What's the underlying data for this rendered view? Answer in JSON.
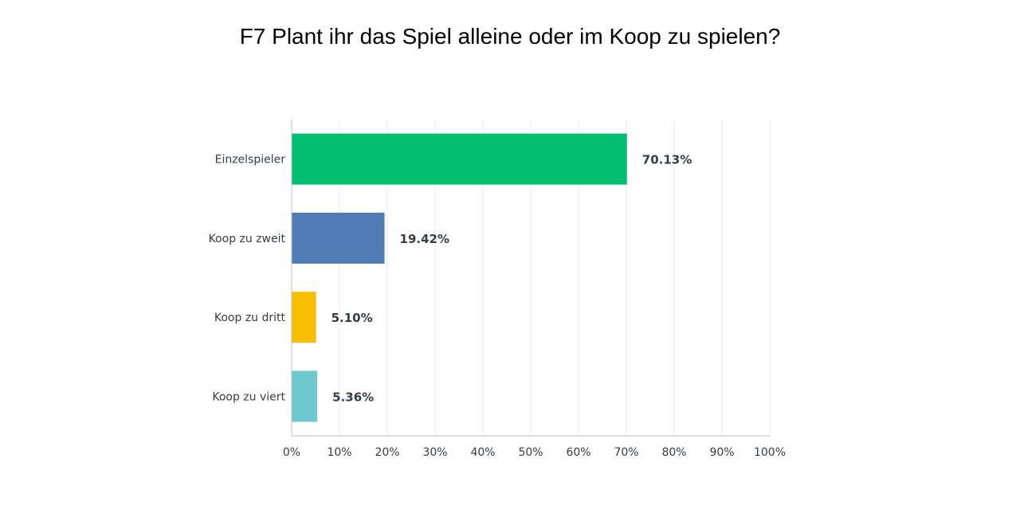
{
  "chart_data": {
    "type": "bar",
    "orientation": "horizontal",
    "title": "F7 Plant ihr das Spiel alleine oder im Koop zu spielen?",
    "categories": [
      "Einzelspieler",
      "Koop zu zweit",
      "Koop zu dritt",
      "Koop zu viert"
    ],
    "values": [
      70.13,
      19.42,
      5.1,
      5.36
    ],
    "value_labels": [
      "70.13%",
      "19.42%",
      "5.10%",
      "5.36%"
    ],
    "colors": [
      "#00bf6f",
      "#507cb6",
      "#f9be00",
      "#6bc8cd"
    ],
    "xlim": [
      0,
      100
    ],
    "x_ticks": [
      0,
      10,
      20,
      30,
      40,
      50,
      60,
      70,
      80,
      90,
      100
    ],
    "x_tick_labels": [
      "0%",
      "10%",
      "20%",
      "30%",
      "40%",
      "50%",
      "60%",
      "70%",
      "80%",
      "90%",
      "100%"
    ],
    "grid": true
  }
}
